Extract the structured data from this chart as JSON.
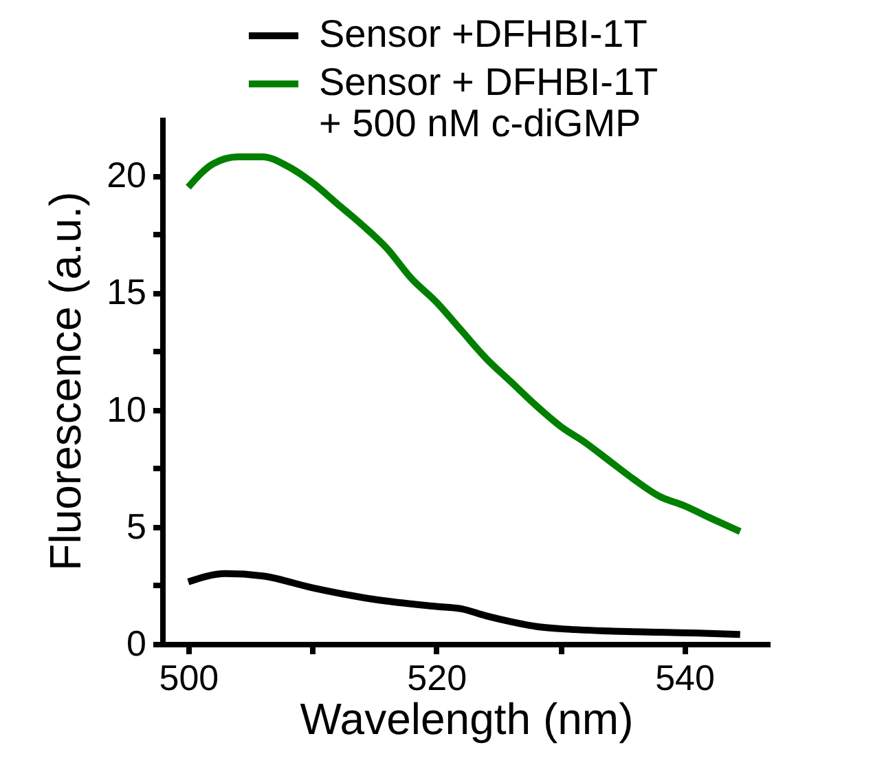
{
  "chart_data": {
    "type": "line",
    "xlabel": "Wavelength (nm)",
    "ylabel": "Fluorescence (a.u.)",
    "xlim": [
      497.9,
      546.9
    ],
    "xticks": [
      500,
      {
        "value": 510,
        "label": null
      },
      520,
      {
        "value": 530,
        "label": null
      },
      540
    ],
    "ylim": [
      0,
      22.5
    ],
    "yticks": [
      0,
      {
        "value": 2.5,
        "label": null
      },
      5,
      {
        "value": 7.5,
        "label": null
      },
      10,
      {
        "value": 12.5,
        "label": null
      },
      15,
      {
        "value": 17.5,
        "label": null
      },
      20
    ],
    "grid": false,
    "legend": "top right",
    "marker": "none",
    "line_style": "solid",
    "series": [
      {
        "name": "Sensor +DFHBI-1T",
        "color": "#000000",
        "x": [
          500,
          503,
          506,
          510,
          515,
          520,
          522,
          524,
          526,
          528,
          530,
          534,
          538,
          542,
          544.5
        ],
        "values": [
          2.65,
          3.0,
          2.9,
          2.4,
          1.9,
          1.6,
          1.5,
          1.2,
          0.95,
          0.75,
          0.65,
          0.55,
          0.5,
          0.45,
          0.4
        ]
      },
      {
        "name": "Sensor + DFHBI-1T\n+ 500 nM c-diGMP",
        "color": "#007f00",
        "x": [
          500,
          502,
          504,
          506,
          508,
          510,
          512,
          514,
          516,
          518,
          520,
          522,
          524,
          526,
          528,
          530,
          532,
          534,
          536,
          538,
          540,
          542,
          544.5
        ],
        "values": [
          19.5,
          20.5,
          20.8,
          20.8,
          20.4,
          19.7,
          18.8,
          17.9,
          16.9,
          15.6,
          14.6,
          13.4,
          12.2,
          11.2,
          10.2,
          9.3,
          8.6,
          7.8,
          7.0,
          6.3,
          5.9,
          5.4,
          4.8
        ]
      }
    ]
  }
}
